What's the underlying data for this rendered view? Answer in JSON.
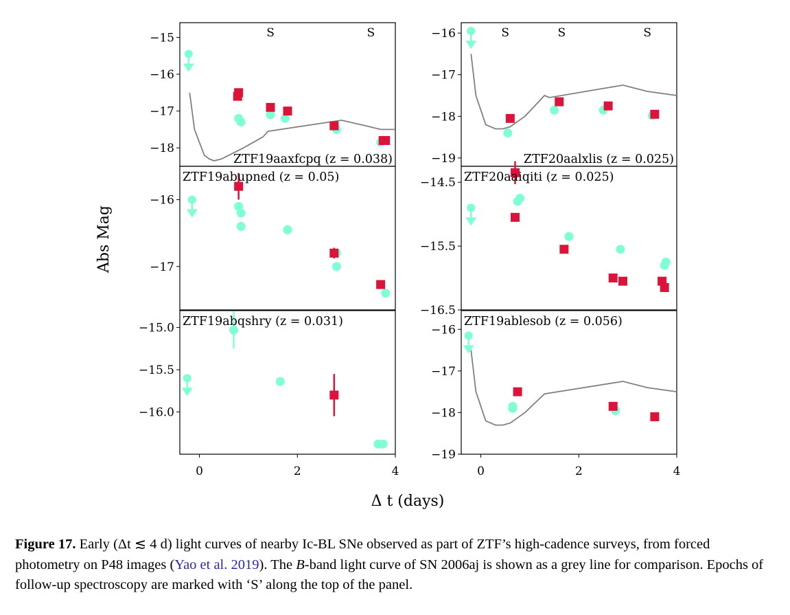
{
  "figure": {
    "ylabel": "Abs Mag",
    "xlabel": "Δ t (days)",
    "spectroscopy_marker": "S",
    "colors": {
      "g_band": "#7fffd4",
      "r_band": "#dc143c",
      "reference": "#808080"
    }
  },
  "caption": {
    "label": "Figure 17.",
    "text_1": " Early (Δt ≲ 4 d) light curves of nearby Ic-BL SNe observed as part of ZTF’s high-cadence surveys, from forced photometry on P48 images (",
    "cite": "Yao et al. 2019",
    "text_2": "). The ",
    "band": "B",
    "text_3": "-band light curve of SN 2006aj is shown as a grey line for comparison. Epochs of follow-up spectroscopy are marked with ‘S’ along the top of the panel."
  },
  "chart_data": [
    {
      "panel": "ZTF19aaxfcpq",
      "label": "ZTF19aaxfcpq (z = 0.038)",
      "label_pos": "bottom-right",
      "type": "scatter",
      "xlim": [
        -0.4,
        4.0
      ],
      "ylim": [
        -14.6,
        -18.5
      ],
      "yticks": [
        -15,
        -16,
        -17,
        -18
      ],
      "ytick_labels": [
        "−15",
        "−16",
        "−17",
        "−18"
      ],
      "spectra": [
        1.45,
        3.5
      ],
      "reference_curve": true,
      "series": [
        {
          "band": "g",
          "points": [
            [
              0.8,
              -17.2,
              0
            ],
            [
              0.85,
              -17.3,
              0
            ],
            [
              1.45,
              -17.1,
              0
            ],
            [
              1.75,
              -17.2,
              0
            ],
            [
              2.8,
              -17.5,
              0
            ],
            [
              3.7,
              -17.85,
              0
            ]
          ],
          "upper_limits": [
            [
              -0.22,
              -15.45
            ]
          ]
        },
        {
          "band": "r",
          "points": [
            [
              0.78,
              -16.6,
              0
            ],
            [
              0.8,
              -16.5,
              0
            ],
            [
              1.45,
              -16.9,
              0
            ],
            [
              1.8,
              -17.0,
              0
            ],
            [
              2.75,
              -17.4,
              0
            ],
            [
              3.8,
              -17.8,
              0
            ],
            [
              3.75,
              -17.8,
              0
            ]
          ],
          "upper_limits": []
        }
      ]
    },
    {
      "panel": "ZTF20aalxlis",
      "label": "ZTF20aalxlis (z = 0.025)",
      "label_pos": "bottom-right",
      "type": "scatter",
      "xlim": [
        -0.4,
        4.0
      ],
      "ylim": [
        -15.75,
        -19.2
      ],
      "yticks": [
        -16,
        -17,
        -18,
        -19
      ],
      "ytick_labels": [
        "−16",
        "−17",
        "−18",
        "−19"
      ],
      "spectra": [
        0.5,
        1.65,
        3.4
      ],
      "reference_curve": true,
      "series": [
        {
          "band": "g",
          "points": [
            [
              0.55,
              -18.4,
              0
            ],
            [
              1.5,
              -17.85,
              0
            ],
            [
              2.5,
              -17.85,
              0
            ],
            [
              3.5,
              -17.98,
              0
            ]
          ],
          "upper_limits": [
            [
              -0.2,
              -15.95
            ]
          ]
        },
        {
          "band": "r",
          "points": [
            [
              0.6,
              -18.05,
              0
            ],
            [
              1.6,
              -17.65,
              0
            ],
            [
              2.6,
              -17.75,
              0
            ],
            [
              3.55,
              -17.95,
              0
            ]
          ],
          "upper_limits": []
        }
      ]
    },
    {
      "panel": "ZTF19abupned",
      "label": "ZTF19abupned (z = 0.05)",
      "label_pos": "top-left",
      "type": "scatter",
      "xlim": [
        -0.4,
        4.0
      ],
      "ylim": [
        -15.5,
        -17.65
      ],
      "yticks": [
        -16,
        -17
      ],
      "ytick_labels": [
        "−16",
        "−17"
      ],
      "spectra": [],
      "reference_curve": false,
      "series": [
        {
          "band": "g",
          "points": [
            [
              0.85,
              -16.4,
              0.07
            ],
            [
              0.85,
              -16.2,
              0.04
            ],
            [
              0.8,
              -16.1,
              0.04
            ],
            [
              1.8,
              -16.45,
              0.07
            ],
            [
              2.8,
              -17.0,
              0
            ],
            [
              2.8,
              -16.8,
              0
            ],
            [
              3.8,
              -17.4,
              0
            ]
          ],
          "upper_limits": [
            [
              -0.15,
              -16.0
            ]
          ]
        },
        {
          "band": "r",
          "points": [
            [
              0.8,
              -15.8,
              0.2
            ],
            [
              2.75,
              -16.8,
              0.08
            ],
            [
              3.7,
              -17.27,
              0
            ]
          ],
          "upper_limits": []
        }
      ]
    },
    {
      "panel": "ZTF20aaiqiti",
      "label": "ZTF20aaiqiti (z = 0.025)",
      "label_pos": "top-left",
      "type": "scatter",
      "xlim": [
        -0.4,
        4.0
      ],
      "ylim": [
        -14.25,
        -16.5
      ],
      "yticks": [
        -14.5,
        -15.5,
        -16.5
      ],
      "ytick_labels": [
        "−14.5",
        "−15.5",
        "−16.5"
      ],
      "spectra": [],
      "reference_curve": false,
      "series": [
        {
          "band": "g",
          "points": [
            [
              0.8,
              -14.75,
              0.07
            ],
            [
              0.75,
              -14.8,
              0.05
            ],
            [
              1.8,
              -15.35,
              0
            ],
            [
              2.85,
              -15.55,
              0
            ],
            [
              3.75,
              -15.8,
              0
            ],
            [
              3.78,
              -15.75,
              0
            ]
          ],
          "upper_limits": [
            [
              -0.2,
              -14.9
            ]
          ]
        },
        {
          "band": "r",
          "points": [
            [
              0.7,
              -15.05,
              0.06
            ],
            [
              0.7,
              -14.35,
              0.18
            ],
            [
              1.7,
              -15.55,
              0
            ],
            [
              2.7,
              -16.0,
              0
            ],
            [
              2.9,
              -16.05,
              0
            ],
            [
              3.7,
              -16.05,
              0
            ],
            [
              3.75,
              -16.15,
              0
            ]
          ],
          "upper_limits": []
        }
      ]
    },
    {
      "panel": "ZTF19abqshry",
      "label": "ZTF19abqshry (z = 0.031)",
      "label_pos": "top-left",
      "type": "scatter",
      "xlim": [
        -0.4,
        4.0
      ],
      "ylim": [
        -14.8,
        -16.5
      ],
      "yticks": [
        -15.0,
        -15.5,
        -16.0
      ],
      "ytick_labels": [
        "−15.0",
        "−15.5",
        "−16.0"
      ],
      "spectra": [],
      "reference_curve": false,
      "series": [
        {
          "band": "g",
          "points": [
            [
              0.7,
              -15.03,
              0.22
            ],
            [
              1.65,
              -15.64,
              0.04
            ],
            [
              2.75,
              -15.8,
              0.06
            ],
            [
              3.65,
              -16.38,
              0
            ],
            [
              3.75,
              -16.38,
              0
            ]
          ],
          "upper_limits": [
            [
              -0.25,
              -15.6
            ]
          ]
        },
        {
          "band": "r",
          "points": [
            [
              2.75,
              -15.8,
              0.25
            ]
          ],
          "upper_limits": []
        }
      ]
    },
    {
      "panel": "ZTF19ablesob",
      "label": "ZTF19ablesob (z = 0.056)",
      "label_pos": "top-left",
      "type": "scatter",
      "xlim": [
        -0.4,
        4.0
      ],
      "ylim": [
        -15.55,
        -19.0
      ],
      "yticks": [
        -16,
        -17,
        -18,
        -19
      ],
      "ytick_labels": [
        "−16",
        "−17",
        "−18",
        "−19"
      ],
      "spectra": [],
      "reference_curve": true,
      "xticks": [
        0,
        2,
        4
      ],
      "series": [
        {
          "band": "g",
          "points": [
            [
              0.65,
              -17.85,
              0
            ],
            [
              0.65,
              -17.9,
              0
            ],
            [
              2.75,
              -17.95,
              0.12
            ]
          ],
          "upper_limits": [
            [
              -0.25,
              -16.15
            ]
          ]
        },
        {
          "band": "r",
          "points": [
            [
              0.75,
              -17.5,
              0
            ],
            [
              2.7,
              -17.85,
              0
            ],
            [
              3.55,
              -18.1,
              0
            ]
          ],
          "upper_limits": []
        }
      ]
    }
  ],
  "reference_curves": {
    "ZTF19aaxfcpq": [
      [
        -0.2,
        -16.5
      ],
      [
        -0.1,
        -17.5
      ],
      [
        0.1,
        -18.2
      ],
      [
        0.2,
        -18.3
      ],
      [
        0.3,
        -18.35
      ],
      [
        0.45,
        -18.3
      ],
      [
        0.6,
        -18.2
      ],
      [
        0.9,
        -18.0
      ],
      [
        1.3,
        -17.7
      ],
      [
        1.4,
        -17.55
      ],
      [
        2.9,
        -17.25
      ],
      [
        3.4,
        -17.4
      ],
      [
        3.7,
        -17.5
      ],
      [
        4.0,
        -17.5
      ]
    ],
    "ZTF20aalxlis": [
      [
        -0.2,
        -16.5
      ],
      [
        -0.1,
        -17.5
      ],
      [
        0.1,
        -18.2
      ],
      [
        0.2,
        -18.25
      ],
      [
        0.3,
        -18.3
      ],
      [
        0.45,
        -18.3
      ],
      [
        0.6,
        -18.25
      ],
      [
        0.9,
        -18.0
      ],
      [
        1.3,
        -17.5
      ],
      [
        1.4,
        -17.55
      ],
      [
        2.9,
        -17.25
      ],
      [
        3.4,
        -17.4
      ],
      [
        3.7,
        -17.45
      ],
      [
        4.0,
        -17.5
      ]
    ],
    "ZTF19ablesob": [
      [
        -0.2,
        -16.5
      ],
      [
        -0.1,
        -17.5
      ],
      [
        0.1,
        -18.2
      ],
      [
        0.2,
        -18.25
      ],
      [
        0.3,
        -18.3
      ],
      [
        0.45,
        -18.3
      ],
      [
        0.6,
        -18.25
      ],
      [
        0.9,
        -18.0
      ],
      [
        1.3,
        -17.55
      ],
      [
        2.9,
        -17.25
      ],
      [
        3.4,
        -17.4
      ],
      [
        3.7,
        -17.45
      ],
      [
        4.0,
        -17.5
      ]
    ]
  }
}
